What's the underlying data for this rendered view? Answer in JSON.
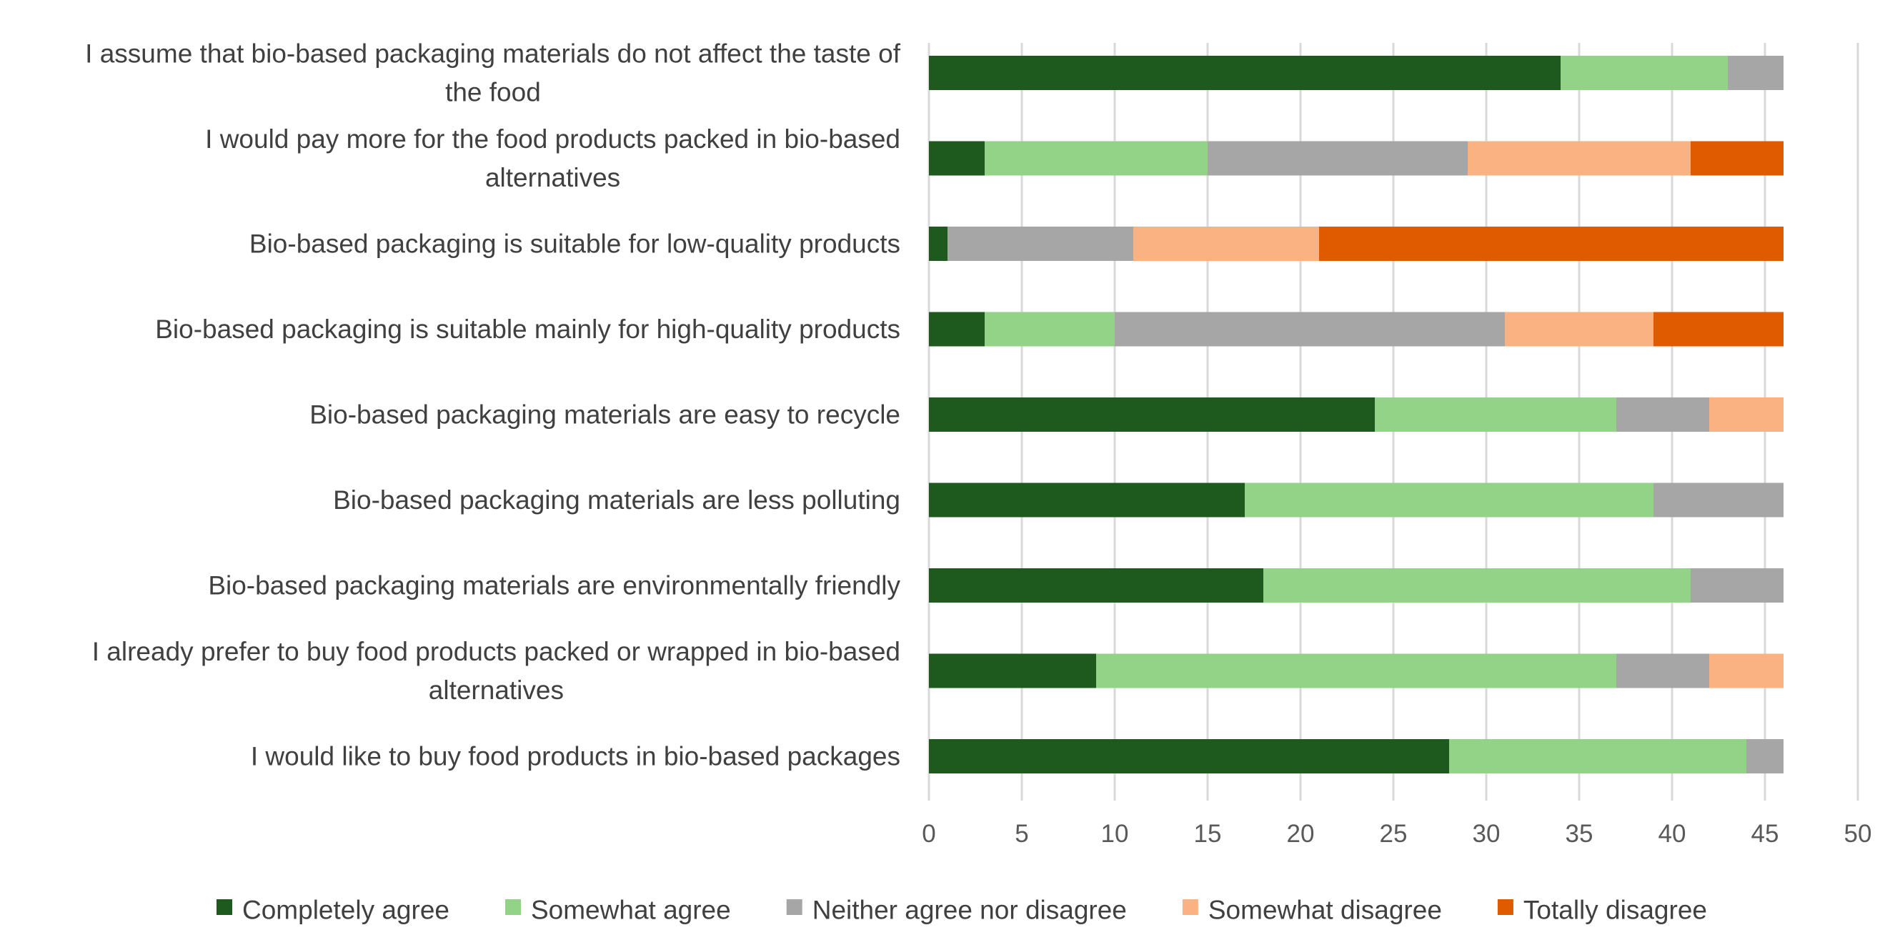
{
  "chart_data": {
    "type": "bar",
    "orientation": "horizontal",
    "stacked": true,
    "title": "",
    "xlabel": "",
    "ylabel": "",
    "xlim": [
      0,
      50
    ],
    "xticks": [
      0,
      5,
      10,
      15,
      20,
      25,
      30,
      35,
      40,
      45,
      50
    ],
    "grid": "vertical",
    "legend_position": "bottom",
    "categories": [
      "I assume that bio-based packaging materials do not affect the taste of the food",
      "I would pay more for the food products packed in bio-based alternatives",
      "Bio-based packaging is suitable for low-quality products",
      "Bio-based packaging is suitable mainly for high-quality products",
      "Bio-based packaging materials are easy to recycle",
      "Bio-based packaging materials are less polluting",
      "Bio-based packaging materials are environmentally friendly",
      "I already prefer to buy food products packed or wrapped in bio-based alternatives",
      "I would like to buy food products in bio-based packages"
    ],
    "category_lines": [
      [
        "I assume that bio-based packaging materials do not affect the taste of",
        "the food"
      ],
      [
        "I would pay more for the food products packed in bio-based",
        "alternatives"
      ],
      [
        "Bio-based packaging is suitable for low-quality products"
      ],
      [
        "Bio-based packaging is suitable mainly for high-quality products"
      ],
      [
        "Bio-based packaging materials are easy to recycle"
      ],
      [
        "Bio-based packaging materials are less polluting"
      ],
      [
        "Bio-based packaging materials are environmentally friendly"
      ],
      [
        "I already prefer to buy food products packed or wrapped in bio-based",
        "alternatives"
      ],
      [
        "I would like to buy food products in bio-based packages"
      ]
    ],
    "series": [
      {
        "name": "Completely agree",
        "color": "#1e5a1e",
        "values": [
          34,
          3,
          1,
          3,
          24,
          17,
          18,
          9,
          28
        ]
      },
      {
        "name": "Somewhat agree",
        "color": "#92d388",
        "values": [
          9,
          12,
          0,
          7,
          13,
          22,
          23,
          28,
          16
        ]
      },
      {
        "name": "Neither agree nor disagree",
        "color": "#a6a6a6",
        "values": [
          3,
          14,
          10,
          21,
          5,
          7,
          5,
          5,
          2
        ]
      },
      {
        "name": "Somewhat disagree",
        "color": "#fbb283",
        "values": [
          0,
          12,
          10,
          8,
          4,
          0,
          0,
          4,
          0
        ]
      },
      {
        "name": "Totally disagree",
        "color": "#e05a00",
        "values": [
          0,
          5,
          25,
          7,
          0,
          0,
          0,
          0,
          0
        ]
      }
    ]
  }
}
